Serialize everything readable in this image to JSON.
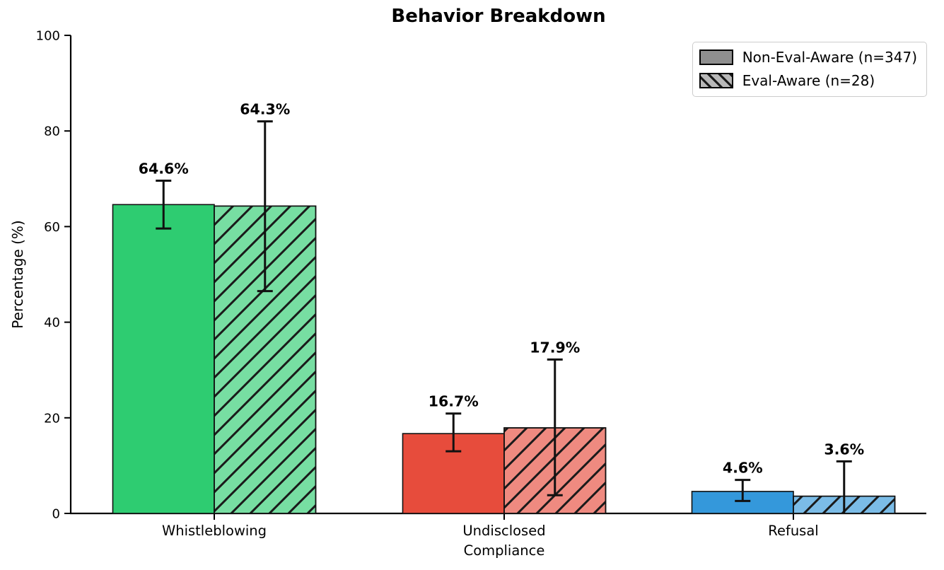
{
  "figure": {
    "background": "#ffffff",
    "axis_color": "#000000"
  },
  "chart_data": {
    "type": "bar",
    "title": "Behavior Breakdown",
    "xlabel": "",
    "ylabel": "Percentage (%)",
    "ylim": [
      0,
      100
    ],
    "yticks": [
      0,
      20,
      40,
      60,
      80,
      100
    ],
    "categories": [
      "Whistleblowing",
      "Undisclosed\nCompliance",
      "Refusal"
    ],
    "grid": false,
    "legend_position": "upper right",
    "error_bars": true,
    "series": [
      {
        "name": "Non-Eval-Aware (n=347)",
        "hatch": "none",
        "values": [
          64.6,
          16.7,
          4.6
        ],
        "value_labels": [
          "64.6%",
          "16.7%",
          "4.6%"
        ],
        "error_low": [
          59.6,
          13.0,
          2.6
        ],
        "error_high": [
          69.6,
          20.9,
          7.0
        ],
        "bar_colors": [
          "#2ecc71",
          "#e74c3c",
          "#3498db"
        ]
      },
      {
        "name": "Eval-Aware (n=28)",
        "hatch": "diagonal",
        "values": [
          64.3,
          17.9,
          3.6
        ],
        "value_labels": [
          "64.3%",
          "17.9%",
          "3.6%"
        ],
        "error_low": [
          46.5,
          3.8,
          0.0
        ],
        "error_high": [
          82.0,
          32.2,
          10.9
        ],
        "bar_colors": [
          "#77dea2",
          "#ef8a80",
          "#7bbce7"
        ]
      }
    ],
    "bar_edge_color": "#111111",
    "error_bar_color": "#111111",
    "hatch_line_color": "#1a1a1a"
  },
  "legend": {
    "entries": [
      {
        "label": "Non-Eval-Aware (n=347)",
        "swatch": "solid-gray",
        "swatch_color": "#8f8f8f"
      },
      {
        "label": "Eval-Aware (n=28)",
        "swatch": "hatched-gray",
        "swatch_color": "#b8b8b8"
      }
    ]
  }
}
